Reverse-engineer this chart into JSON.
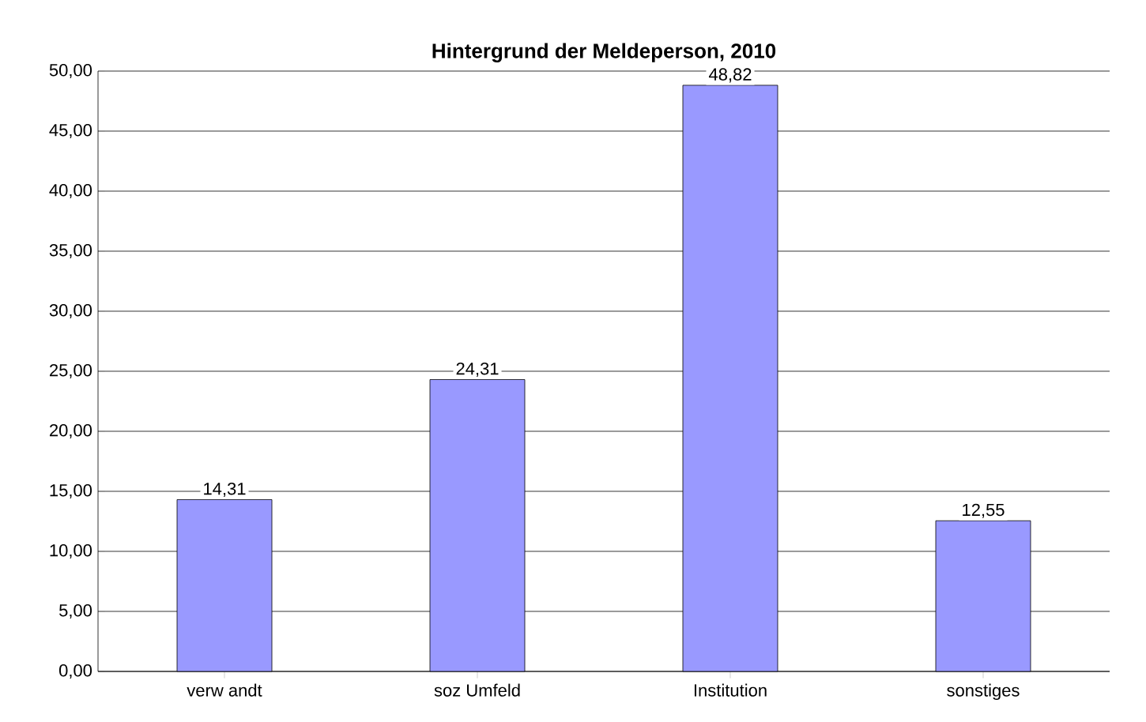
{
  "chart_data": {
    "type": "bar",
    "title": "Hintergrund der Meldeperson, 2010",
    "categories": [
      "verw andt",
      "soz Umfeld",
      "Institution",
      "sonstiges"
    ],
    "values": [
      14.31,
      24.31,
      48.82,
      12.55
    ],
    "value_labels": [
      "14,31",
      "24,31",
      "48,82",
      "12,55"
    ],
    "color": "#9999ff",
    "ylim": [
      0,
      50
    ],
    "yticks": [
      {
        "value": 0,
        "label": "0,00"
      },
      {
        "value": 5,
        "label": "5,00"
      },
      {
        "value": 10,
        "label": "10,00"
      },
      {
        "value": 15,
        "label": "15,00"
      },
      {
        "value": 20,
        "label": "20,00"
      },
      {
        "value": 25,
        "label": "25,00"
      },
      {
        "value": 30,
        "label": "30,00"
      },
      {
        "value": 35,
        "label": "35,00"
      },
      {
        "value": 40,
        "label": "40,00"
      },
      {
        "value": 45,
        "label": "45,00"
      },
      {
        "value": 50,
        "label": "50,00"
      }
    ],
    "grid": "y"
  }
}
